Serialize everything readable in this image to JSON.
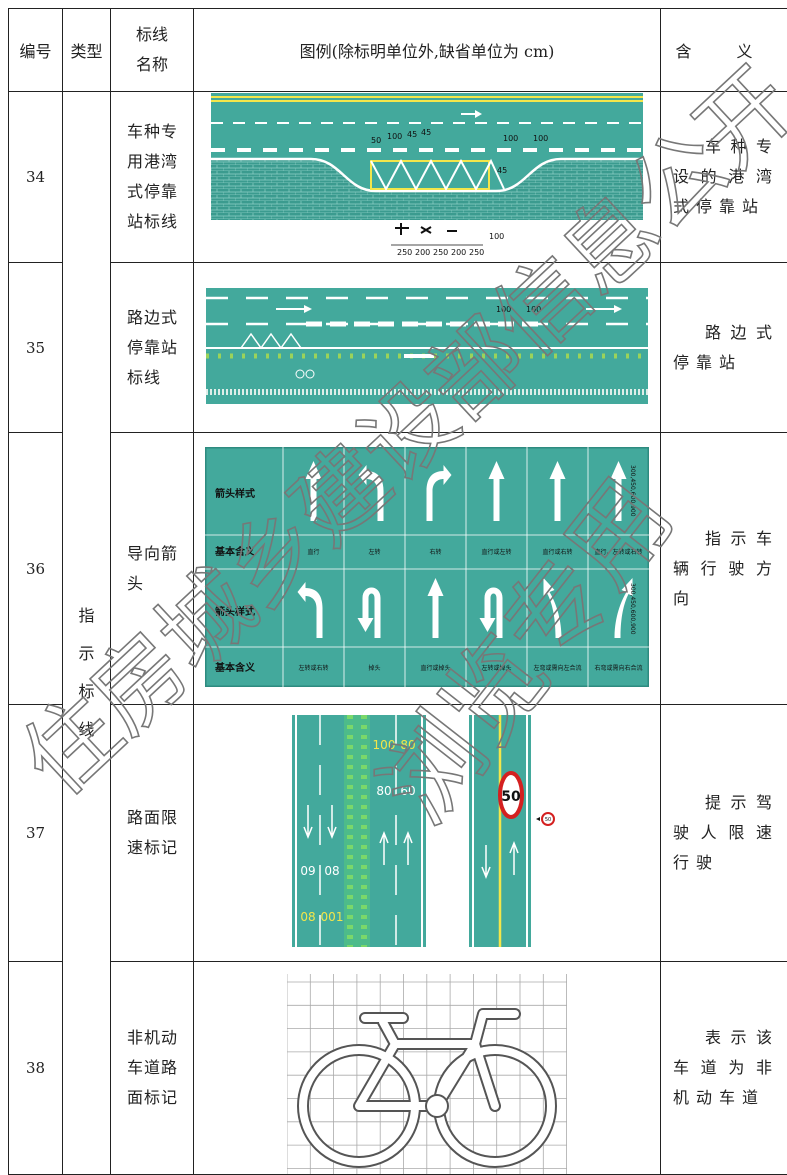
{
  "header": {
    "number": "编号",
    "type": "类型",
    "name": "标线名称",
    "legend": "图例(除标明单位外,缺省单位为 cm)",
    "meaning": "含 义"
  },
  "type_label": "指示标线",
  "rows": [
    {
      "number": "34",
      "name": "车种专用港湾式停靠站标线",
      "meaning": "车种专设的港湾式停靠站",
      "legend_texts": [
        "50",
        "100",
        "45",
        "45",
        "100",
        "100",
        "45",
        "250",
        "200",
        "250",
        "200",
        "250",
        "100"
      ]
    },
    {
      "number": "35",
      "name": "路边式停靠站标线",
      "meaning": "路边式停靠站",
      "legend_texts": [
        "100",
        "100"
      ]
    },
    {
      "number": "36",
      "name": "导向箭头",
      "meaning": "指示车辆行驶方向",
      "legend_texts": [
        "箭头样式",
        "基本含义",
        "箭头样式",
        "基本含义",
        "300,450,600,900",
        "300,450,600,900"
      ],
      "meanings_1": [
        "直行",
        "左转",
        "右转",
        "直行或左转",
        "直行或右转",
        "直行、左转或右转"
      ],
      "meanings_2": [
        "左转或右转",
        "掉头",
        "直行或掉头",
        "左转或掉头",
        "左弯或需向左合流",
        "右弯或需向右合流"
      ]
    },
    {
      "number": "37",
      "name": "路面限速标记",
      "meaning": "提示驾驶人限速行驶",
      "legend_texts": [
        "100",
        "80",
        "80",
        "60",
        "09",
        "08",
        "08",
        "001",
        "50",
        "50"
      ]
    },
    {
      "number": "38",
      "name": "非机动车道路面标记",
      "meaning": "表示该车道为非机动车道",
      "legend_texts": []
    }
  ],
  "watermark": [
    "住房城乡建设部信息公开",
    "浏览专用"
  ]
}
